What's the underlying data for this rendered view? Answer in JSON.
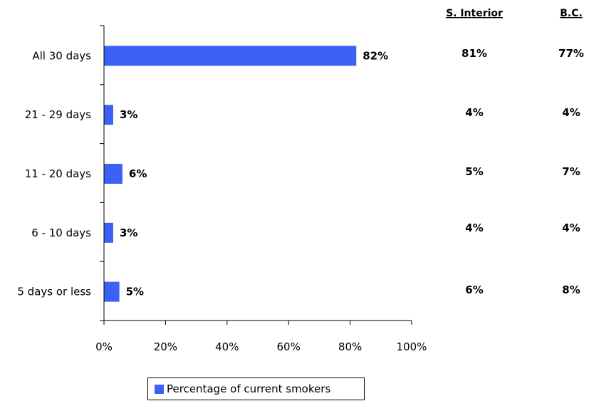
{
  "chart_data": {
    "type": "bar",
    "orientation": "horizontal",
    "categories": [
      "All 30 days",
      "21 - 29 days",
      "11 - 20 days",
      "6 - 10 days",
      "5 days or less"
    ],
    "series": [
      {
        "name": "Percentage of current smokers",
        "values": [
          82,
          3,
          6,
          3,
          5
        ],
        "labels": [
          "82%",
          "3%",
          "6%",
          "3%",
          "5%"
        ],
        "color": "#3c62f5"
      }
    ],
    "xlim": [
      0,
      100
    ],
    "xticks": [
      0,
      20,
      40,
      60,
      80,
      100
    ],
    "xtick_labels": [
      "0%",
      "20%",
      "40%",
      "60%",
      "80%",
      "100%"
    ],
    "grid": false,
    "legend_position": "bottom",
    "comparison_columns": [
      {
        "header": "S. Interior",
        "values": [
          "81%",
          "4%",
          "5%",
          "4%",
          "6%"
        ]
      },
      {
        "header": "B.C.",
        "values": [
          "77%",
          "4%",
          "7%",
          "4%",
          "8%"
        ]
      }
    ]
  }
}
